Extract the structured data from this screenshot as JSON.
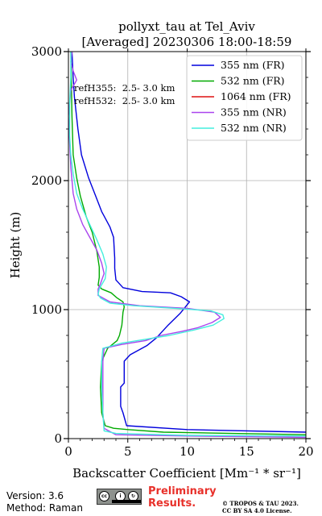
{
  "chart_data": {
    "type": "line",
    "title": "pollyxt_tau at Tel_Aviv",
    "subtitle": "[Averaged] 20230306 18:00-18:59",
    "xlabel": "Backscatter Coefficient [Mm⁻¹ * sr⁻¹]",
    "ylabel": "Height (m)",
    "xlim": [
      0,
      20
    ],
    "ylim": [
      0,
      3000
    ],
    "xticks": [
      "0",
      "5",
      "10",
      "15",
      "20"
    ],
    "yticks": [
      "0",
      "1000",
      "2000",
      "3000"
    ],
    "grid": true,
    "legend_position": "top-right",
    "annotations": [
      "refH355:  2.5- 3.0 km",
      "refH532:  2.5- 3.0 km"
    ],
    "series": [
      {
        "name": "355 nm (FR)",
        "color": "#0000dd",
        "points": [
          [
            20,
            50
          ],
          [
            10,
            70
          ],
          [
            4.9,
            100
          ],
          [
            4.6,
            200
          ],
          [
            4.4,
            250
          ],
          [
            4.4,
            400
          ],
          [
            4.7,
            430
          ],
          [
            4.7,
            600
          ],
          [
            5.2,
            650
          ],
          [
            6.6,
            720
          ],
          [
            7.4,
            780
          ],
          [
            8.4,
            880
          ],
          [
            9.4,
            970
          ],
          [
            10.2,
            1060
          ],
          [
            9.5,
            1100
          ],
          [
            8.6,
            1130
          ],
          [
            6.2,
            1140
          ],
          [
            4.6,
            1170
          ],
          [
            4.0,
            1230
          ],
          [
            3.9,
            1320
          ],
          [
            3.9,
            1400
          ],
          [
            3.8,
            1560
          ],
          [
            3.5,
            1640
          ],
          [
            2.8,
            1760
          ],
          [
            2.3,
            1880
          ],
          [
            1.7,
            2020
          ],
          [
            1.1,
            2200
          ],
          [
            0.8,
            2400
          ],
          [
            0.5,
            2650
          ],
          [
            0.4,
            2800
          ],
          [
            0.3,
            3000
          ]
        ]
      },
      {
        "name": "532 nm (FR)",
        "color": "#00aa00",
        "points": [
          [
            20,
            30
          ],
          [
            8,
            50
          ],
          [
            5,
            70
          ],
          [
            3.8,
            80
          ],
          [
            3.1,
            100
          ],
          [
            2.8,
            200
          ],
          [
            2.7,
            400
          ],
          [
            2.8,
            600
          ],
          [
            3.3,
            700
          ],
          [
            4.1,
            760
          ],
          [
            4.3,
            800
          ],
          [
            4.5,
            880
          ],
          [
            4.6,
            980
          ],
          [
            4.7,
            1020
          ],
          [
            4.6,
            1060
          ],
          [
            4.1,
            1090
          ],
          [
            3.6,
            1130
          ],
          [
            2.8,
            1160
          ],
          [
            2.5,
            1190
          ],
          [
            2.6,
            1250
          ],
          [
            2.6,
            1330
          ],
          [
            2.4,
            1450
          ],
          [
            2.0,
            1600
          ],
          [
            1.5,
            1720
          ],
          [
            1.0,
            1880
          ],
          [
            0.7,
            2020
          ],
          [
            0.4,
            2200
          ],
          [
            0.3,
            2500
          ],
          [
            0.2,
            3000
          ]
        ]
      },
      {
        "name": "1064 nm (FR)",
        "color": "#dd1111",
        "points": []
      },
      {
        "name": "355 nm (NR)",
        "color": "#aa44ee",
        "points": [
          [
            20,
            10
          ],
          [
            10,
            20
          ],
          [
            4,
            30
          ],
          [
            3.0,
            80
          ],
          [
            2.9,
            200
          ],
          [
            2.9,
            400
          ],
          [
            2.9,
            600
          ],
          [
            3.0,
            700
          ],
          [
            4.5,
            730
          ],
          [
            6.5,
            760
          ],
          [
            7.8,
            800
          ],
          [
            9.5,
            830
          ],
          [
            10.9,
            860
          ],
          [
            12.1,
            900
          ],
          [
            12.8,
            940
          ],
          [
            12.3,
            980
          ],
          [
            10,
            1010
          ],
          [
            6,
            1030
          ],
          [
            3.5,
            1060
          ],
          [
            2.5,
            1110
          ],
          [
            2.5,
            1160
          ],
          [
            2.7,
            1200
          ],
          [
            3.0,
            1280
          ],
          [
            2.8,
            1360
          ],
          [
            2.4,
            1460
          ],
          [
            1.8,
            1560
          ],
          [
            1.2,
            1660
          ],
          [
            0.7,
            1780
          ],
          [
            0.4,
            1900
          ],
          [
            0.2,
            2100
          ],
          [
            0.1,
            2300
          ],
          [
            0.0,
            2500
          ],
          [
            0.2,
            2700
          ],
          [
            0.7,
            2780
          ],
          [
            0.4,
            2850
          ],
          [
            0.2,
            2920
          ],
          [
            0.3,
            3000
          ]
        ]
      },
      {
        "name": "532 nm (NR)",
        "color": "#44eedd",
        "points": [
          [
            20,
            20
          ],
          [
            10,
            25
          ],
          [
            4,
            40
          ],
          [
            3.0,
            60
          ],
          [
            2.9,
            200
          ],
          [
            2.8,
            400
          ],
          [
            2.8,
            600
          ],
          [
            2.9,
            700
          ],
          [
            4.5,
            740
          ],
          [
            6.5,
            770
          ],
          [
            8.5,
            800
          ],
          [
            10.5,
            840
          ],
          [
            12.2,
            880
          ],
          [
            13.1,
            930
          ],
          [
            13.0,
            960
          ],
          [
            12,
            990
          ],
          [
            9,
            1010
          ],
          [
            5.5,
            1030
          ],
          [
            3.5,
            1050
          ],
          [
            2.7,
            1090
          ],
          [
            2.5,
            1120
          ],
          [
            2.6,
            1160
          ],
          [
            3.1,
            1240
          ],
          [
            3.2,
            1330
          ],
          [
            2.9,
            1430
          ],
          [
            2.4,
            1540
          ],
          [
            1.8,
            1660
          ],
          [
            1.2,
            1780
          ],
          [
            0.7,
            1900
          ],
          [
            0.4,
            2050
          ],
          [
            0.2,
            2200
          ],
          [
            0.1,
            2350
          ],
          [
            0.1,
            2600
          ],
          [
            0.2,
            2800
          ],
          [
            0.2,
            3000
          ]
        ]
      }
    ]
  },
  "footer": {
    "version": "Version: 3.6",
    "method": "Method: Raman",
    "license_badge": "cc by sa",
    "preliminary": "Preliminary Results.",
    "copyright_line1": "© TROPOS & TAU 2023.",
    "copyright_line2": "CC BY SA 4.0 License."
  }
}
